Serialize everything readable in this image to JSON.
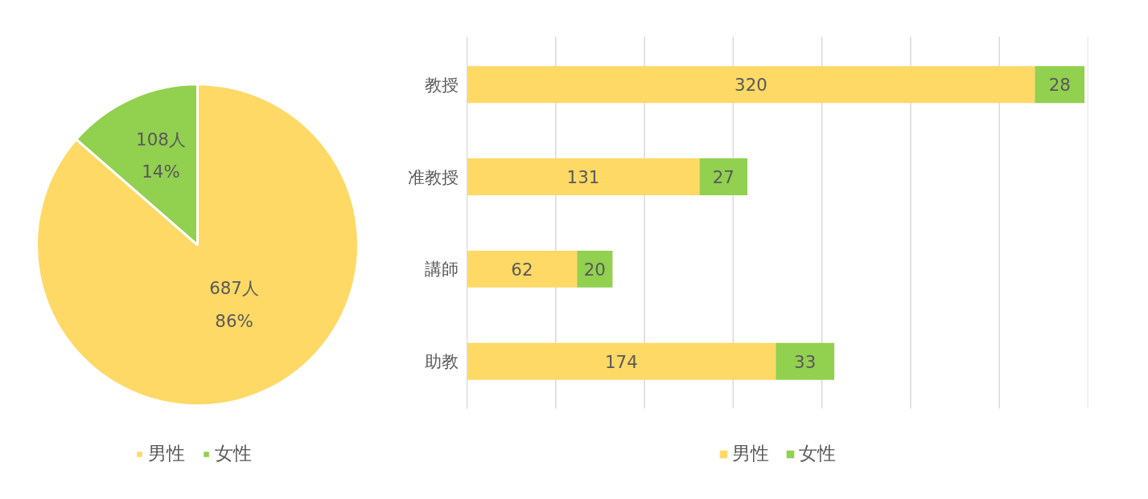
{
  "chart_data": [
    {
      "type": "pie",
      "categories": [
        "男性",
        "女性"
      ],
      "values": [
        687,
        108
      ],
      "colors": [
        "#ffd966",
        "#92d050"
      ],
      "value_labels": [
        "687人\n86%",
        "108人\n14%"
      ],
      "legend": "bottom"
    },
    {
      "type": "bar",
      "orientation": "horizontal",
      "stacked": true,
      "categories": [
        "教授",
        "准教授",
        "講師",
        "助教"
      ],
      "series": [
        {
          "name": "男性",
          "color": "#ffd966",
          "values": [
            320,
            131,
            62,
            174
          ]
        },
        {
          "name": "女性",
          "color": "#92d050",
          "values": [
            28,
            27,
            20,
            33
          ]
        }
      ],
      "xticks": [
        {
          "value": 0,
          "label": null
        },
        {
          "value": 50,
          "label": null
        },
        {
          "value": 100,
          "label": null
        },
        {
          "value": 150,
          "label": null
        },
        {
          "value": 200,
          "label": null
        },
        {
          "value": 250,
          "label": null
        },
        {
          "value": 300,
          "label": null
        },
        {
          "value": 350,
          "label": null
        }
      ],
      "grid": "x",
      "legend": "bottom",
      "data_labels": true,
      "tick_labels": "y"
    }
  ]
}
